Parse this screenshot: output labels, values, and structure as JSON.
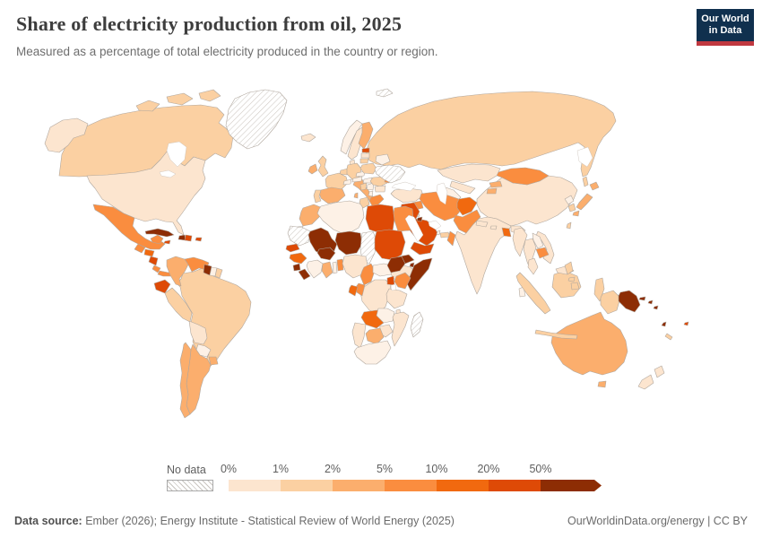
{
  "header": {
    "title": "Share of electricity production from oil, 2025",
    "subtitle": "Measured as a percentage of total electricity produced in the country or region."
  },
  "logo": {
    "line1": "Our World",
    "line2": "in Data"
  },
  "legend": {
    "no_data_label": "No data",
    "tick_labels": [
      "0%",
      "1%",
      "2%",
      "5%",
      "10%",
      "20%",
      "50%"
    ],
    "bin_colors": [
      "#fce5cf",
      "#fbd0a2",
      "#fbae6d",
      "#fa8d3f",
      "#f1690f",
      "#de4a06",
      "#8d2d04"
    ]
  },
  "footer": {
    "source_label": "Data source:",
    "source_text": " Ember (2026); Energy Institute - Statistical Review of World Energy (2025)",
    "link_text": "OurWorldinData.org/energy | CC BY"
  },
  "chart_data": {
    "type": "choropleth",
    "title": "Share of electricity production from oil, 2025",
    "unit": "% of total electricity production",
    "legend_position": "bottom",
    "color_scale": {
      "no_data": {
        "label": "No data",
        "fill": "hatched"
      },
      "bins": [
        {
          "range": "~0%",
          "color": "#fdf1e6"
        },
        {
          "range": "0-1%",
          "color": "#fce5cf"
        },
        {
          "range": "1-2%",
          "color": "#fbd0a2"
        },
        {
          "range": "2-5%",
          "color": "#fbae6d"
        },
        {
          "range": "5-10%",
          "color": "#fa8d3f"
        },
        {
          "range": "10-20%",
          "color": "#f1690f"
        },
        {
          "range": "20-50%",
          "color": "#de4a06"
        },
        {
          "range": ">50%",
          "color": "#8d2d04"
        }
      ]
    },
    "countries": {
      "United States": "0-1%",
      "Canada": "1-2%",
      "Greenland": "No data",
      "Mexico": "5-10%",
      "Guatemala": "5-10%",
      "Honduras": "10-20%",
      "Nicaragua": "20-50%",
      "Costa Rica": "5-10%",
      "Panama": "5-10%",
      "Cuba": ">50%",
      "Jamaica": "20-50%",
      "Haiti": ">50%",
      "Dominican Republic": "20-50%",
      "Puerto Rico": "20-50%",
      "Colombia": "2-5%",
      "Venezuela": "5-10%",
      "Guyana": ">50%",
      "Suriname": "~0%",
      "French Guiana": "1-2%",
      "Ecuador": "20-50%",
      "Peru": "1-2%",
      "Brazil": "1-2%",
      "Bolivia": "0-1%",
      "Paraguay": "~0%",
      "Uruguay": "2-5%",
      "Argentina": "2-5%",
      "Chile": "2-5%",
      "Iceland": "0-1%",
      "Norway": "~0%",
      "Sweden": "0-1%",
      "Finland": "2-5%",
      "Estonia": "20-50%",
      "Latvia": "0-1%",
      "Lithuania": "1-2%",
      "Denmark": "0-1%",
      "United Kingdom": "1-2%",
      "Ireland": "2-5%",
      "Netherlands": "1-2%",
      "Germany": "1-2%",
      "France": "1-2%",
      "Spain": "2-5%",
      "Portugal": "1-2%",
      "Italy": "2-5%",
      "Switzerland": "~0%",
      "Austria": "~0%",
      "Czechia": "~0%",
      "Poland": "1-2%",
      "Hungary": "~0%",
      "Croatia": "1-2%",
      "Serbia": "~0%",
      "Albania": "~0%",
      "Greece": "5-10%",
      "Romania": "1-2%",
      "Bulgaria": "0-1%",
      "Moldova": "5-10%",
      "Belarus": "~0%",
      "Ukraine": "No data",
      "Svalbard": "No data",
      "Russia": "1-2%",
      "Kazakhstan": "0-1%",
      "Uzbekistan": "0-1%",
      "Turkmenistan": "~0%",
      "Kyrgyzstan": "2-5%",
      "Tajikistan": "2-5%",
      "Turkey": "0-1%",
      "Cyprus": ">50%",
      "Syria": "5-10%",
      "Lebanon": ">50%",
      "Israel": "~0%",
      "Jordan": "0-1%",
      "Iraq": "20-50%",
      "Kuwait": ">50%",
      "Saudi Arabia": "20-50%",
      "Qatar": "~0%",
      "United Arab Emirates": "1-2%",
      "Oman": "5-10%",
      "Yemen": "20-50%",
      "Iran": "5-10%",
      "Afghanistan": "10-20%",
      "Pakistan": "5-10%",
      "India": "0-1%",
      "Nepal": "0-1%",
      "Bhutan": "0-1%",
      "Bangladesh": "10-20%",
      "Sri Lanka": "~0%",
      "Myanmar": "0-1%",
      "Thailand": "0-1%",
      "Laos": "~0%",
      "Cambodia": "5-10%",
      "Vietnam": "0-1%",
      "Malaysia": "0-1%",
      "Indonesia": "1-2%",
      "Papua New Guinea": ">50%",
      "Solomon Islands": ">50%",
      "Vanuatu": ">50%",
      "Fiji": "20-50%",
      "New Caledonia": "1-2%",
      "China": "0-1%",
      "Mongolia": "5-10%",
      "North Korea": "~0%",
      "South Korea": "1-2%",
      "Japan": "2-5%",
      "Taiwan": "1-2%",
      "Philippines": "1-2%",
      "Australia": "2-5%",
      "New Zealand": "0-1%",
      "Morocco": "2-5%",
      "Western Sahara": "No data",
      "Algeria": "~0%",
      "Tunisia": "1-2%",
      "Libya": "20-50%",
      "Egypt": "5-10%",
      "Mauritania": "No data",
      "Mali": ">50%",
      "Niger": ">50%",
      "Chad": "No data",
      "Sudan": "20-50%",
      "Eritrea": ">50%",
      "Djibouti": ">50%",
      "Ethiopia": "0-1%",
      "Somalia": ">50%",
      "Senegal": "20-50%",
      "Guinea": "10-20%",
      "Sierra Leone": ">50%",
      "Liberia": ">50%",
      "Ivory Coast": "~0%",
      "Burkina Faso": ">50%",
      "Ghana": "2-5%",
      "Togo": "~0%",
      "Benin": "5-10%",
      "Nigeria": "0-1%",
      "Cameroon": "5-10%",
      "Central African Republic": "~0%",
      "South Sudan": ">50%",
      "Uganda": "20-50%",
      "Kenya": "5-10%",
      "Democratic Republic of Congo": "0-1%",
      "Congo": "5-10%",
      "Gabon": "10-20%",
      "Tanzania": "0-1%",
      "Angola": "10-20%",
      "Zambia": "~0%",
      "Malawi": "0-1%",
      "Mozambique": "0-1%",
      "Zimbabwe": "0-1%",
      "Botswana": "2-5%",
      "Namibia": "0-1%",
      "South Africa": "~0%",
      "Madagascar": "No data"
    }
  }
}
